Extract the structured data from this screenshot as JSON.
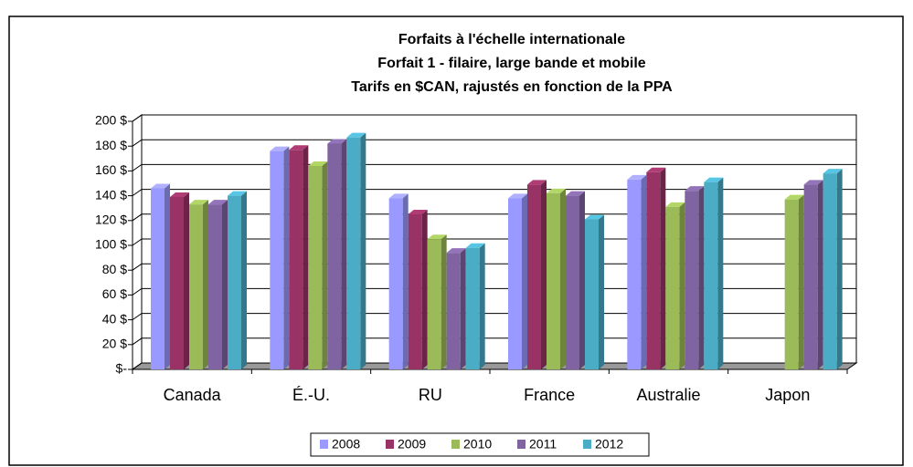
{
  "chart_data": {
    "type": "bar",
    "title": [
      "Forfaits à l'échelle internationale",
      "Forfait 1 - filaire, large bande et mobile",
      "Tarifs en $CAN, rajustés en fonction de la PPA"
    ],
    "categories": [
      "Canada",
      "É.-U.",
      "RU",
      "France",
      "Australie",
      "Japon"
    ],
    "series": [
      {
        "name": "2008",
        "color": "#9999ff",
        "values": [
          146,
          176,
          138,
          138,
          153,
          null
        ]
      },
      {
        "name": "2009",
        "color": "#993366",
        "values": [
          139,
          177,
          125,
          149,
          159,
          null
        ]
      },
      {
        "name": "2010",
        "color": "#9bbb59",
        "values": [
          133,
          164,
          105,
          142,
          131,
          137
        ]
      },
      {
        "name": "2011",
        "color": "#8064a2",
        "values": [
          133,
          182,
          94,
          140,
          144,
          149
        ]
      },
      {
        "name": "2012",
        "color": "#4bacc6",
        "values": [
          140,
          187,
          98,
          121,
          151,
          158
        ]
      }
    ],
    "ylim": [
      0,
      200
    ],
    "yticks": [
      {
        "value": 0,
        "label": "$-"
      },
      {
        "value": 20,
        "label": "20 $"
      },
      {
        "value": 40,
        "label": "40 $"
      },
      {
        "value": 60,
        "label": "60 $"
      },
      {
        "value": 80,
        "label": "80 $"
      },
      {
        "value": 100,
        "label": "100 $"
      },
      {
        "value": 120,
        "label": "120 $"
      },
      {
        "value": 140,
        "label": "140 $"
      },
      {
        "value": 160,
        "label": "160 $"
      },
      {
        "value": 180,
        "label": "180 $"
      },
      {
        "value": 200,
        "label": "200 $"
      }
    ],
    "grid": true,
    "legend": "bottom"
  }
}
